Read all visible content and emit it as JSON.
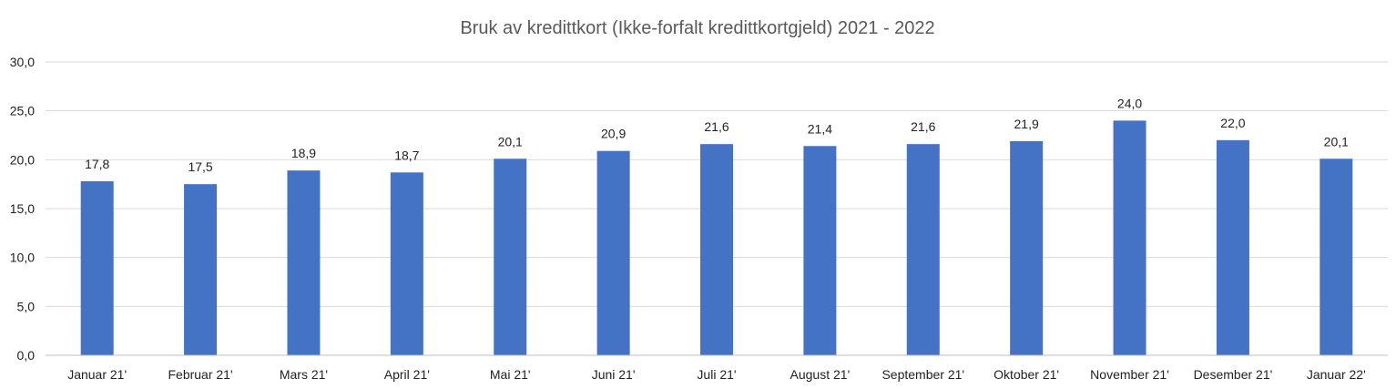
{
  "chart_data": {
    "type": "bar",
    "title": "Bruk av kredittkort (Ikke-forfalt kredittkortgjeld) 2021 - 2022",
    "xlabel": "",
    "ylabel": "",
    "categories": [
      "Januar 21'",
      "Februar 21'",
      "Mars 21'",
      "April 21'",
      "Mai 21'",
      "Juni 21'",
      "Juli 21'",
      "August 21'",
      "September 21'",
      "Oktober 21'",
      "November 21'",
      "Desember 21'",
      "Januar 22'"
    ],
    "values": [
      17.8,
      17.5,
      18.9,
      18.7,
      20.1,
      20.9,
      21.6,
      21.4,
      21.6,
      21.9,
      24.0,
      22.0,
      20.1
    ],
    "data_labels": [
      "17,8",
      "17,5",
      "18,9",
      "18,7",
      "20,1",
      "20,9",
      "21,6",
      "21,4",
      "21,6",
      "21,9",
      "24,0",
      "22,0",
      "20,1"
    ],
    "ylim": [
      0,
      30
    ],
    "yticks": [
      0,
      5,
      10,
      15,
      20,
      25,
      30
    ],
    "ytick_labels": [
      "0,0",
      "5,0",
      "10,0",
      "15,0",
      "20,0",
      "25,0",
      "30,0"
    ],
    "grid": true,
    "legend": "none",
    "bar_color": "#4472C4",
    "grid_color": "#D9D9D9",
    "axis_color": "#BFBFBF"
  }
}
